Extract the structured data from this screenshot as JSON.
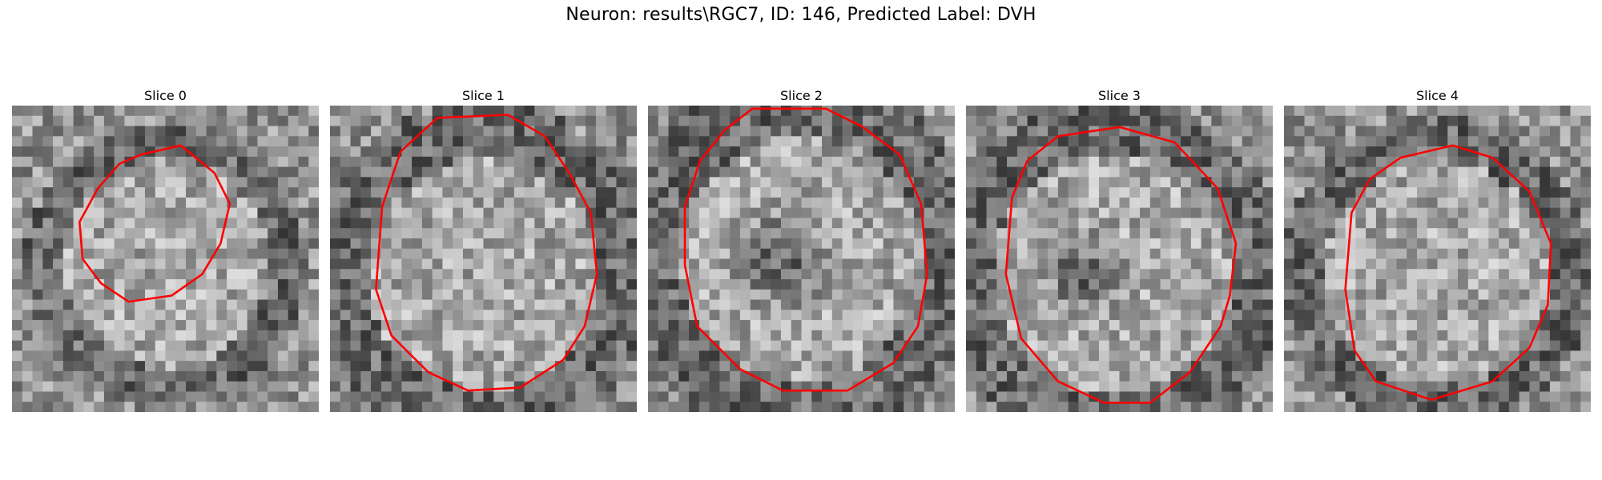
{
  "figure": {
    "title": "Neuron: results\\RGC7, ID: 146, Predicted Label: DVH"
  },
  "panels": [
    {
      "title": "Slice 0"
    },
    {
      "title": "Slice 1"
    },
    {
      "title": "Slice 2"
    },
    {
      "title": "Slice 3"
    },
    {
      "title": "Slice 4"
    }
  ],
  "colors": {
    "contour": "#ff0000",
    "background": "#ffffff"
  }
}
